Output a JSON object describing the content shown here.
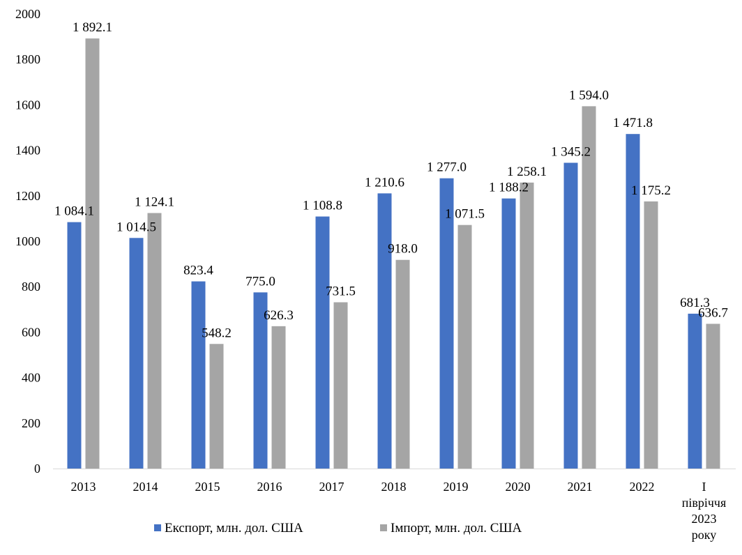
{
  "chart_data": {
    "type": "bar",
    "title": "",
    "xlabel": "",
    "ylabel": "",
    "ylim": [
      0,
      2000
    ],
    "y_ticks": [
      "0",
      "200",
      "400",
      "600",
      "800",
      "1000",
      "1200",
      "1400",
      "1600",
      "1800",
      "2000"
    ],
    "grid": false,
    "legend_position": "bottom",
    "categories": [
      [
        "2013"
      ],
      [
        "2014"
      ],
      [
        "2015"
      ],
      [
        "2016"
      ],
      [
        "2017"
      ],
      [
        "2018"
      ],
      [
        "2019"
      ],
      [
        "2020"
      ],
      [
        "2021"
      ],
      [
        "2022"
      ],
      [
        "I",
        "півріччя",
        "2023",
        "року"
      ]
    ],
    "series": [
      {
        "name": "Експорт, млн. дол. США",
        "color": "#4472c4",
        "values": [
          1084.1,
          1014.5,
          823.4,
          775.0,
          1108.8,
          1210.6,
          1277.0,
          1188.2,
          1345.2,
          1471.8,
          681.3
        ],
        "labels": [
          "1 084.1",
          "1 014.5",
          "823.4",
          "775.0",
          "1 108.8",
          "1 210.6",
          "1 277.0",
          "1 188.2",
          "1 345.2",
          "1 471.8",
          "681.3"
        ]
      },
      {
        "name": "Імпорт, млн. дол. США",
        "color": "#a5a5a5",
        "values": [
          1892.1,
          1124.1,
          548.2,
          626.3,
          731.5,
          918.0,
          1071.5,
          1258.1,
          1594.0,
          1175.2,
          636.7
        ],
        "labels": [
          "1 892.1",
          "1 124.1",
          "548.2",
          "626.3",
          "731.5",
          "918.0",
          "1 071.5",
          "1 258.1",
          "1 594.0",
          "1 175.2",
          "636.7"
        ]
      }
    ]
  }
}
